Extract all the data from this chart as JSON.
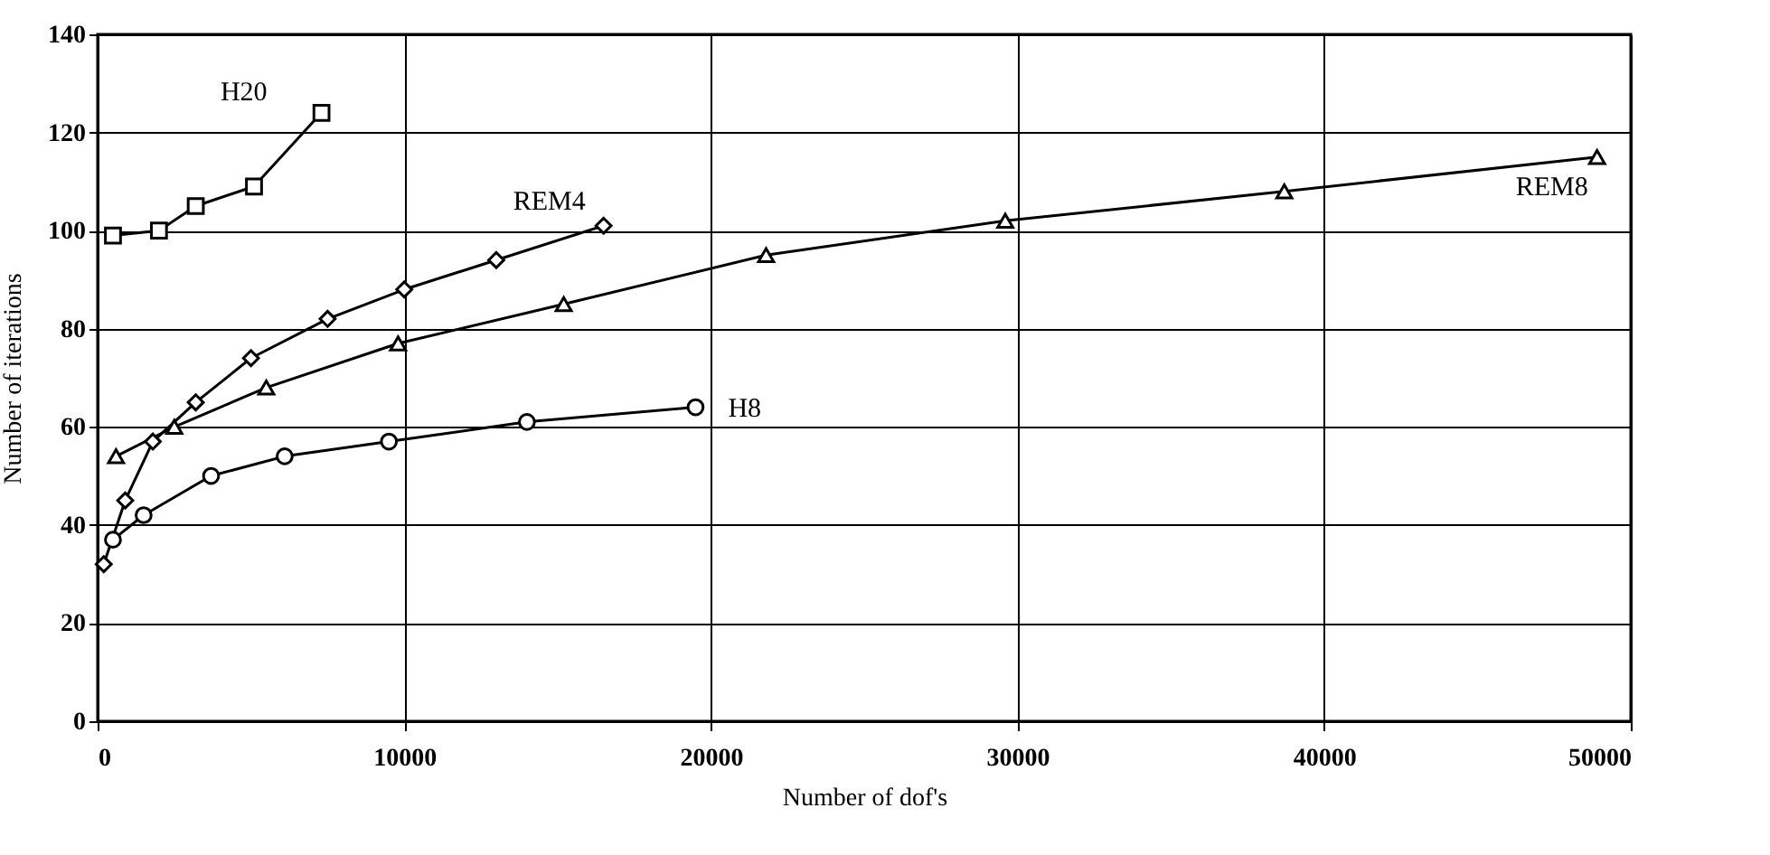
{
  "chart_data": {
    "type": "line",
    "xlabel": "Number of dof's",
    "ylabel": "Number of iterations",
    "xlim": [
      0,
      50000
    ],
    "xticks": [
      0,
      10000,
      20000,
      30000,
      40000,
      50000
    ],
    "ylim": [
      0,
      140
    ],
    "yticks": [
      0,
      20,
      40,
      60,
      80,
      100,
      120,
      140
    ],
    "grid": true,
    "series": [
      {
        "name": "H20",
        "color": "#000000",
        "marker": "square",
        "x": [
          500,
          2000,
          3200,
          5100,
          7300
        ],
        "values": [
          99,
          100,
          105,
          109,
          124
        ]
      },
      {
        "name": "REM4",
        "color": "#000000",
        "marker": "diamond",
        "x": [
          200,
          900,
          1800,
          3200,
          5000,
          7500,
          10000,
          13000,
          16500
        ],
        "values": [
          32,
          45,
          57,
          65,
          74,
          82,
          88,
          94,
          101
        ]
      },
      {
        "name": "REM8",
        "color": "#000000",
        "marker": "triangle",
        "x": [
          600,
          2500,
          5500,
          9800,
          15200,
          21800,
          29600,
          38700,
          48900
        ],
        "values": [
          54,
          60,
          68,
          77,
          85,
          95,
          102,
          108,
          115
        ]
      },
      {
        "name": "H8",
        "color": "#000000",
        "marker": "circle",
        "x": [
          500,
          1500,
          3700,
          6100,
          9500,
          14000,
          19500
        ],
        "values": [
          37,
          42,
          50,
          54,
          57,
          61,
          64
        ]
      }
    ]
  }
}
